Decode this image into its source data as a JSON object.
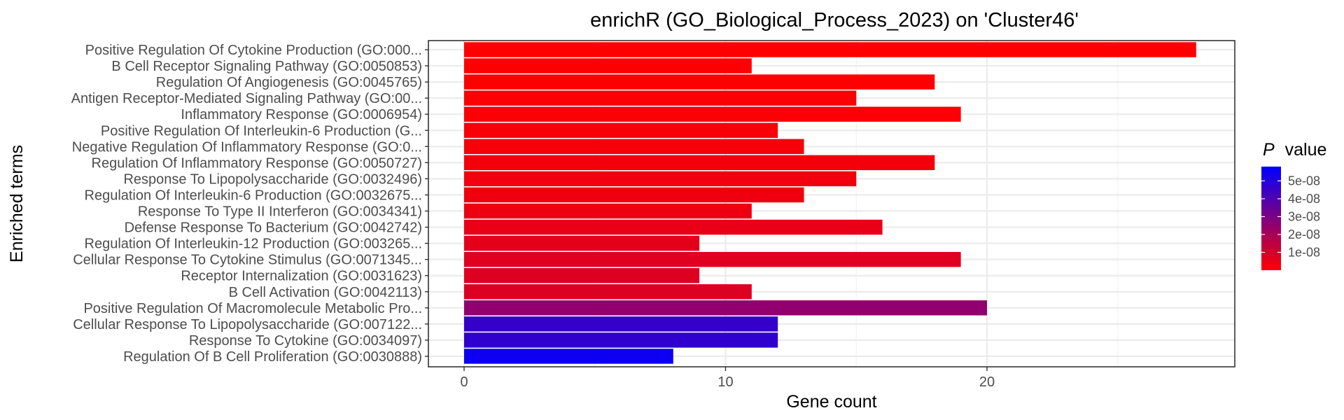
{
  "chart_data": {
    "type": "bar",
    "orientation": "horizontal",
    "title": "enrichR (GO_Biological_Process_2023) on 'Cluster46'",
    "xlabel": "Gene count",
    "ylabel": "Enriched terms",
    "xlim": [
      0,
      29
    ],
    "x_ticks": [
      "0",
      "10",
      "20"
    ],
    "x_tick_values": [
      0,
      10,
      20
    ],
    "grid": true,
    "categories": [
      "Positive Regulation Of Cytokine Production (GO:000...",
      "B Cell Receptor Signaling Pathway (GO:0050853)",
      "Regulation Of Angiogenesis (GO:0045765)",
      "Antigen Receptor-Mediated Signaling Pathway (GO:00...",
      "Inflammatory Response (GO:0006954)",
      "Positive Regulation Of Interleukin-6 Production (G...",
      "Negative Regulation Of Inflammatory Response (GO:0...",
      "Regulation Of Inflammatory Response (GO:0050727)",
      "Response To Lipopolysaccharide (GO:0032496)",
      "Regulation Of Interleukin-6 Production (GO:0032675...",
      "Response To Type II Interferon (GO:0034341)",
      "Defense Response To Bacterium (GO:0042742)",
      "Regulation Of Interleukin-12 Production (GO:003265...",
      "Cellular Response To Cytokine Stimulus (GO:0071345...",
      "Receptor Internalization (GO:0031623)",
      "B Cell Activation (GO:0042113)",
      "Positive Regulation Of Macromolecule Metabolic Pro...",
      "Cellular Response To Lipopolysaccharide (GO:007122...",
      "Response To Cytokine (GO:0034097)",
      "Regulation Of B Cell Proliferation (GO:0030888)"
    ],
    "values": [
      28,
      11,
      18,
      15,
      19,
      12,
      13,
      18,
      15,
      13,
      11,
      16,
      9,
      19,
      9,
      11,
      20,
      12,
      12,
      8
    ],
    "p_values": [
      1e-10,
      3e-10,
      5e-10,
      8e-10,
      1e-09,
      1.5e-09,
      2e-09,
      2.5e-09,
      3e-09,
      3.5e-09,
      4e-09,
      5e-09,
      6e-09,
      7e-09,
      7.5e-09,
      8e-09,
      2.5e-08,
      4.6e-08,
      4.7e-08,
      5.5e-08
    ],
    "legend": {
      "title_italic": "P",
      "title_rest": "value",
      "placement": "right",
      "ticks": [
        "5e-08",
        "4e-08",
        "3e-08",
        "2e-08",
        "1e-08"
      ],
      "tick_values": [
        5e-08,
        4e-08,
        3e-08,
        2e-08,
        1e-08
      ],
      "range": [
        0,
        5.8e-08
      ],
      "color_low": "#ff0000",
      "color_high": "#0000ff"
    }
  }
}
